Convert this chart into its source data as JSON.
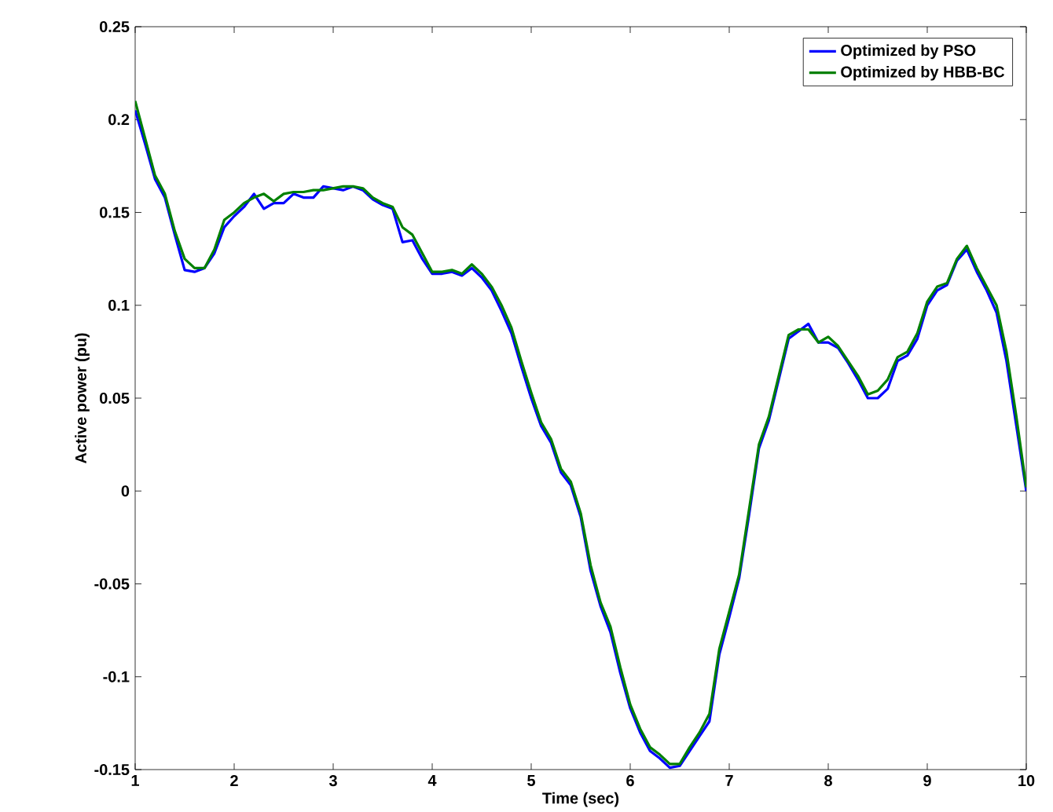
{
  "chart_data": {
    "type": "line",
    "xlabel": "Time (sec)",
    "ylabel": "Active power (pu)",
    "x": [
      1.0,
      1.1,
      1.2,
      1.3,
      1.4,
      1.5,
      1.6,
      1.7,
      1.8,
      1.9,
      2.0,
      2.1,
      2.2,
      2.3,
      2.4,
      2.5,
      2.6,
      2.7,
      2.8,
      2.9,
      3.0,
      3.1,
      3.2,
      3.3,
      3.4,
      3.5,
      3.6,
      3.7,
      3.8,
      3.9,
      4.0,
      4.1,
      4.2,
      4.3,
      4.4,
      4.5,
      4.6,
      4.7,
      4.8,
      4.9,
      5.0,
      5.1,
      5.2,
      5.3,
      5.4,
      5.5,
      5.6,
      5.7,
      5.8,
      5.9,
      6.0,
      6.1,
      6.2,
      6.3,
      6.4,
      6.5,
      6.6,
      6.7,
      6.8,
      6.9,
      7.0,
      7.1,
      7.2,
      7.3,
      7.4,
      7.5,
      7.6,
      7.7,
      7.8,
      7.9,
      8.0,
      8.1,
      8.2,
      8.3,
      8.4,
      8.5,
      8.6,
      8.7,
      8.8,
      8.9,
      9.0,
      9.1,
      9.2,
      9.3,
      9.4,
      9.5,
      9.6,
      9.7,
      9.8,
      9.9,
      10.0
    ],
    "series": [
      {
        "name": "Optimized by PSO",
        "color": "#0000ff",
        "values": [
          0.205,
          0.187,
          0.168,
          0.158,
          0.138,
          0.119,
          0.118,
          0.12,
          0.128,
          0.142,
          0.148,
          0.153,
          0.16,
          0.152,
          0.155,
          0.155,
          0.16,
          0.158,
          0.158,
          0.164,
          0.163,
          0.162,
          0.164,
          0.162,
          0.157,
          0.154,
          0.152,
          0.134,
          0.135,
          0.125,
          0.117,
          0.117,
          0.118,
          0.116,
          0.12,
          0.115,
          0.108,
          0.097,
          0.085,
          0.067,
          0.05,
          0.035,
          0.026,
          0.01,
          0.003,
          -0.014,
          -0.043,
          -0.062,
          -0.076,
          -0.098,
          -0.117,
          -0.13,
          -0.14,
          -0.144,
          -0.149,
          -0.148,
          -0.14,
          -0.132,
          -0.124,
          -0.088,
          -0.068,
          -0.047,
          -0.013,
          0.023,
          0.038,
          0.06,
          0.082,
          0.086,
          0.09,
          0.08,
          0.08,
          0.077,
          0.069,
          0.06,
          0.05,
          0.05,
          0.055,
          0.07,
          0.073,
          0.082,
          0.1,
          0.108,
          0.111,
          0.124,
          0.13,
          0.118,
          0.108,
          0.096,
          0.07,
          0.035,
          0.0
        ]
      },
      {
        "name": "Optimized by HBB-BC",
        "color": "#008000",
        "values": [
          0.21,
          0.19,
          0.17,
          0.16,
          0.14,
          0.125,
          0.12,
          0.12,
          0.13,
          0.146,
          0.15,
          0.155,
          0.158,
          0.16,
          0.156,
          0.16,
          0.161,
          0.161,
          0.162,
          0.162,
          0.163,
          0.164,
          0.164,
          0.163,
          0.158,
          0.155,
          0.153,
          0.142,
          0.138,
          0.128,
          0.118,
          0.118,
          0.119,
          0.117,
          0.122,
          0.117,
          0.11,
          0.1,
          0.088,
          0.07,
          0.053,
          0.037,
          0.028,
          0.012,
          0.005,
          -0.012,
          -0.04,
          -0.06,
          -0.073,
          -0.095,
          -0.115,
          -0.128,
          -0.138,
          -0.142,
          -0.147,
          -0.147,
          -0.138,
          -0.13,
          -0.12,
          -0.085,
          -0.065,
          -0.045,
          -0.01,
          0.025,
          0.04,
          0.062,
          0.084,
          0.087,
          0.087,
          0.08,
          0.083,
          0.078,
          0.07,
          0.062,
          0.052,
          0.054,
          0.06,
          0.072,
          0.075,
          0.085,
          0.102,
          0.11,
          0.112,
          0.125,
          0.132,
          0.12,
          0.11,
          0.1,
          0.075,
          0.04,
          0.002
        ]
      }
    ],
    "xlim": [
      1,
      10
    ],
    "xticks": [
      1,
      2,
      3,
      4,
      5,
      6,
      7,
      8,
      9,
      10
    ],
    "ylim": [
      -0.15,
      0.25
    ],
    "yticks": [
      -0.15,
      -0.1,
      -0.05,
      0,
      0.05,
      0.1,
      0.15,
      0.2,
      0.25
    ],
    "grid": false,
    "legend": "top right",
    "marker": "none",
    "line_style": "solid"
  }
}
